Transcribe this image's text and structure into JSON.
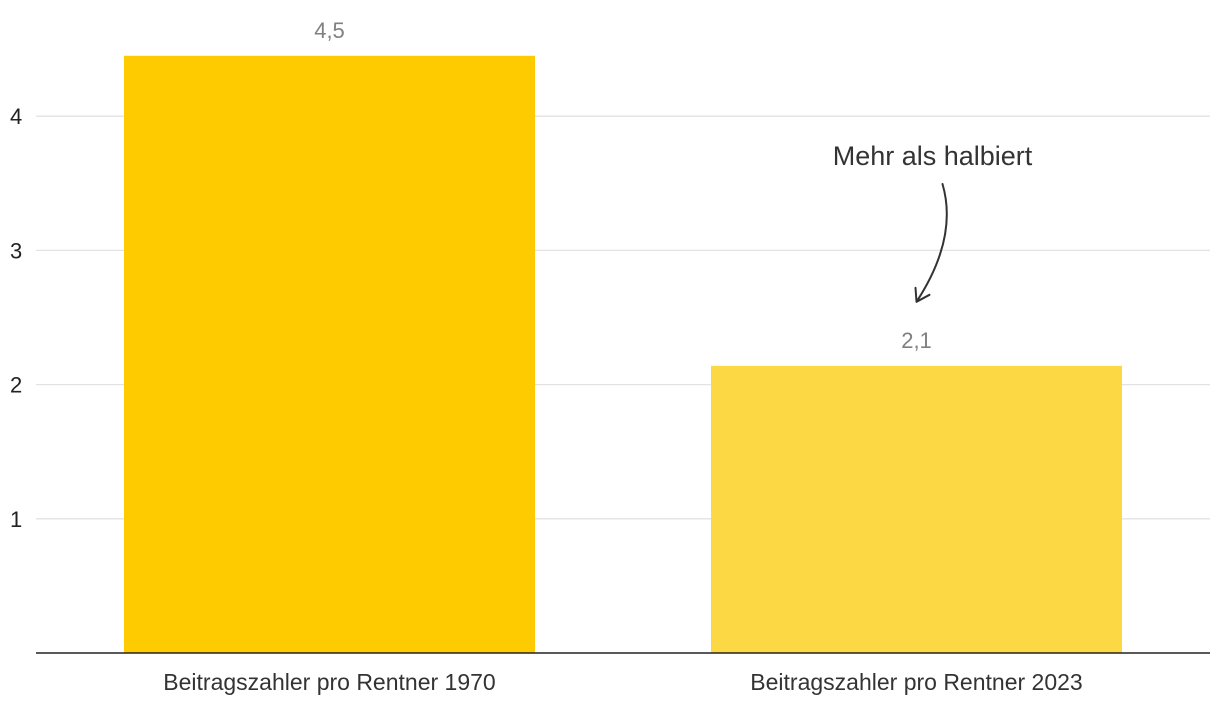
{
  "chart_data": {
    "type": "bar",
    "categories": [
      "Beitragszahler pro Rentner 1970",
      "Beitragszahler pro Rentner 2023"
    ],
    "values": [
      4.45,
      2.14
    ],
    "value_labels": [
      "4,5",
      "2,1"
    ],
    "colors": [
      "#FDCB00",
      "#FDD845"
    ],
    "ylim": [
      0,
      4.8
    ],
    "yticks": [
      1,
      2,
      3,
      4
    ],
    "ytick_labels": [
      "1",
      "2",
      "3",
      "4"
    ],
    "grid": true,
    "annotation": {
      "text": "Mehr als halbiert",
      "target_index": 1
    }
  }
}
